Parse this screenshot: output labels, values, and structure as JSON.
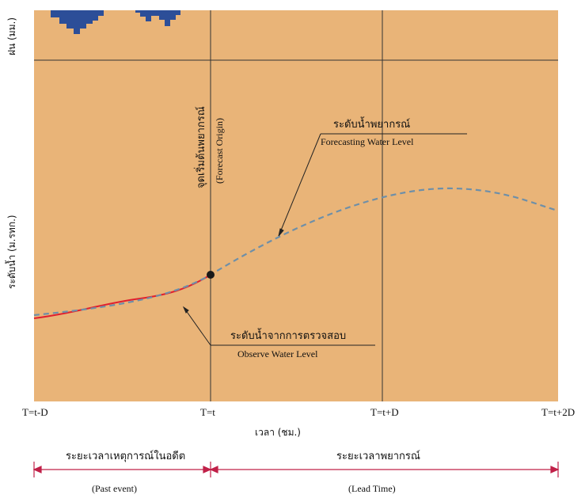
{
  "colors": {
    "panel": "#E9B478",
    "rain": "#2C4E98",
    "observed": "#E0202E",
    "forecast": "#6E8FA8",
    "bracket": "#C02048",
    "watermark": "#B7C9A8"
  },
  "rain_axis_label": "ฝน (มม.)",
  "water_axis_label": "ระดับน้ำ (ม.รทก.)",
  "x_axis_label": "เวลา (ชม.)",
  "ticks": [
    "T=t-D",
    "T=t",
    "T=t+D",
    "T=t+2D"
  ],
  "forecast_origin": {
    "thai": "จุดเริ่มต้นพยากรณ์",
    "english": "(Forecast Origin)"
  },
  "forecast_level": {
    "thai": "ระดับน้ำพยากรณ์",
    "english": "Forecasting Water Level"
  },
  "observed_level": {
    "thai": "ระดับน้ำจากการตรวจสอบ",
    "english": "Observe Water Level"
  },
  "periods": {
    "past": {
      "thai": "ระยะเวลาเหตุการณ์ในอดีต",
      "english": "(Past event)"
    },
    "lead": {
      "thai": "ระยะเวลาพยากรณ์",
      "english": "(Lead Time)"
    }
  }
}
